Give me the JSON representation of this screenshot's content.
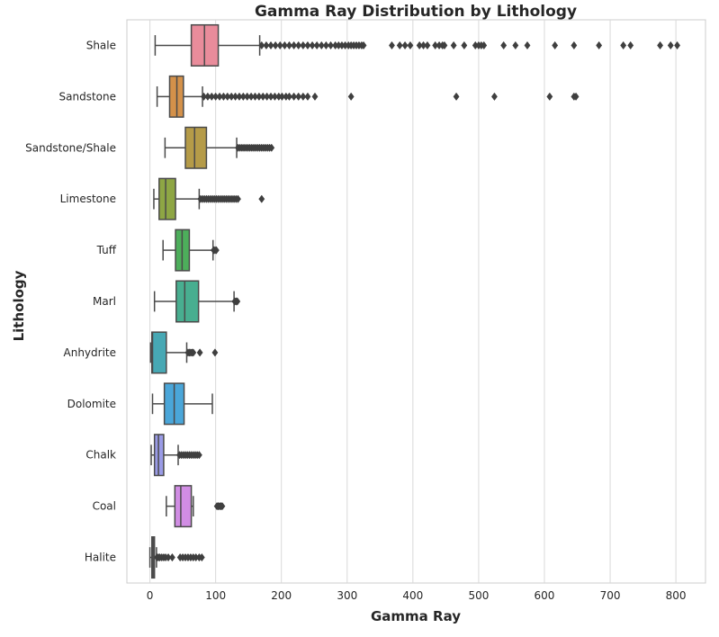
{
  "chart_data": {
    "type": "boxplot",
    "orientation": "horizontal",
    "title": "Gamma Ray Distribution by Lithology",
    "xlabel": "Gamma Ray",
    "ylabel": "Lithology",
    "xlim": [
      -35,
      845
    ],
    "xticks": [
      0,
      100,
      200,
      300,
      400,
      500,
      600,
      700,
      800
    ],
    "grid": "vertical",
    "legend": "none",
    "categories": [
      {
        "name": "Shale",
        "color": "#E98C9B",
        "whislo": 8,
        "q1": 63,
        "median": 83,
        "q3": 104,
        "whishi": 167,
        "outliers": [
          170,
          177,
          184,
          191,
          198,
          205,
          212,
          219,
          226,
          233,
          240,
          247,
          254,
          261,
          268,
          275,
          282,
          287,
          292,
          297,
          302,
          306,
          310,
          314,
          318,
          322,
          325,
          368,
          380,
          388,
          396,
          410,
          416,
          422,
          434,
          440,
          445,
          448,
          462,
          478,
          495,
          500,
          504,
          508,
          538,
          556,
          574,
          616,
          645,
          683,
          720,
          731,
          776,
          792,
          802
        ]
      },
      {
        "name": "Sandstone",
        "color": "#D4914A",
        "whislo": 11,
        "q1": 30,
        "median": 41,
        "q3": 51,
        "whishi": 80,
        "outliers": [
          82,
          88,
          94,
          100,
          106,
          112,
          118,
          124,
          130,
          136,
          142,
          148,
          154,
          160,
          166,
          172,
          178,
          184,
          190,
          196,
          201,
          207,
          212,
          219,
          226,
          233,
          240,
          251,
          306,
          466,
          524,
          608,
          645,
          648
        ]
      },
      {
        "name": "Sandstone/Shale",
        "color": "#B59B48",
        "whislo": 23,
        "q1": 54,
        "median": 68,
        "q3": 86,
        "whishi": 132,
        "outliers": [
          134,
          137,
          140,
          143,
          146,
          149,
          152,
          155,
          158,
          161,
          164,
          167,
          170,
          173,
          176,
          179,
          182,
          185
        ]
      },
      {
        "name": "Limestone",
        "color": "#8EA644",
        "whislo": 6,
        "q1": 14,
        "median": 24,
        "q3": 39,
        "whishi": 75,
        "outliers": [
          77,
          80,
          83,
          86,
          89,
          92,
          95,
          98,
          101,
          104,
          107,
          110,
          113,
          116,
          119,
          122,
          125,
          128,
          131,
          134,
          170
        ]
      },
      {
        "name": "Tuff",
        "color": "#4DAE5B",
        "whislo": 20,
        "q1": 39,
        "median": 49,
        "q3": 60,
        "whishi": 96,
        "outliers": [
          97,
          99,
          101
        ]
      },
      {
        "name": "Marl",
        "color": "#48AE90",
        "whislo": 7,
        "q1": 40,
        "median": 53,
        "q3": 74,
        "whishi": 128,
        "outliers": [
          129,
          131,
          133
        ]
      },
      {
        "name": "Anhydrite",
        "color": "#47A8B4",
        "whislo": 1,
        "q1": 3,
        "median": 4,
        "q3": 25,
        "whishi": 56,
        "outliers": [
          58,
          60,
          62,
          64,
          66,
          76,
          99
        ]
      },
      {
        "name": "Dolomite",
        "color": "#4AA6D9",
        "whislo": 4,
        "q1": 22,
        "median": 37,
        "q3": 52,
        "whishi": 95,
        "outliers": []
      },
      {
        "name": "Chalk",
        "color": "#9A9BE6",
        "whislo": 2,
        "q1": 7,
        "median": 13,
        "q3": 21,
        "whishi": 43,
        "outliers": [
          45,
          48,
          51,
          54,
          57,
          60,
          63,
          66,
          69,
          72,
          75
        ]
      },
      {
        "name": "Coal",
        "color": "#D18DE4",
        "whislo": 25,
        "q1": 38,
        "median": 47,
        "q3": 63,
        "whishi": 66,
        "outliers": [
          102,
          104,
          106,
          108,
          110
        ]
      },
      {
        "name": "Halite",
        "color": "#E27FBE",
        "whislo": 0,
        "q1": 3,
        "median": 5,
        "q3": 7,
        "whishi": 10,
        "outliers": [
          11,
          13,
          15,
          18,
          21,
          24,
          28,
          34,
          46,
          50,
          54,
          58,
          62,
          66,
          70,
          75,
          79
        ]
      }
    ]
  }
}
